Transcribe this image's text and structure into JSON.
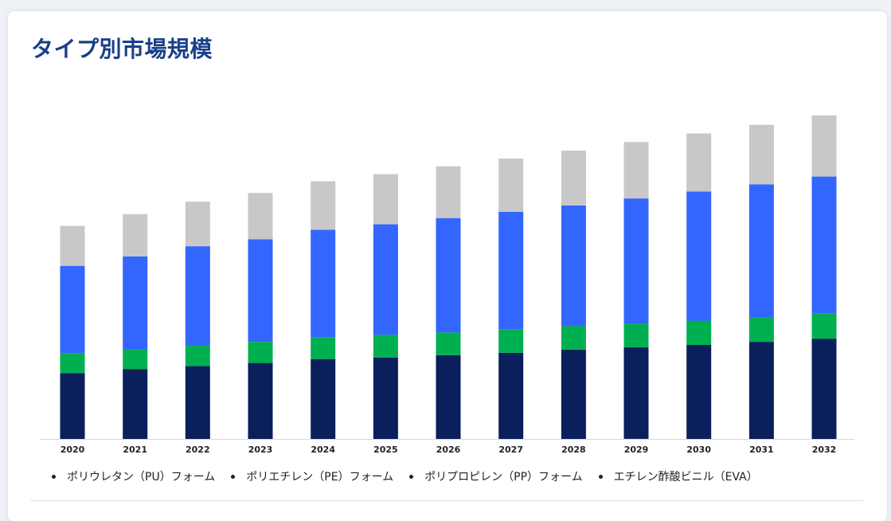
{
  "title": "タイプ別市場規模",
  "chart_data": {
    "type": "bar",
    "stacked": true,
    "categories": [
      "2020",
      "2021",
      "2022",
      "2023",
      "2024",
      "2025",
      "2026",
      "2027",
      "2028",
      "2029",
      "2030",
      "2031",
      "2032"
    ],
    "series": [
      {
        "name": "ポリウレタン（PU）フォーム",
        "color": "#0a1f5c",
        "values": [
          84,
          89,
          93,
          97,
          102,
          104,
          107,
          110,
          114,
          117,
          120,
          124,
          128
        ]
      },
      {
        "name": "ポリエチレン（PE）フォーム",
        "color": "#00b050",
        "values": [
          25,
          25,
          27,
          27,
          28,
          29,
          29,
          30,
          30,
          30,
          31,
          31,
          32
        ]
      },
      {
        "name": "ポリプロピレン（PP）フォーム",
        "color": "#3366ff",
        "values": [
          112,
          119,
          126,
          131,
          137,
          141,
          146,
          150,
          154,
          160,
          165,
          170,
          175
        ]
      },
      {
        "name": "エチレン酢酸ビニル（EVA）",
        "color": "#c8c8c8",
        "values": [
          51,
          54,
          57,
          59,
          62,
          64,
          66,
          68,
          70,
          72,
          74,
          76,
          78
        ]
      }
    ],
    "ylim": [
      0,
      420
    ],
    "grid": false,
    "y_axis_visible": false,
    "legend_position": "bottom"
  }
}
